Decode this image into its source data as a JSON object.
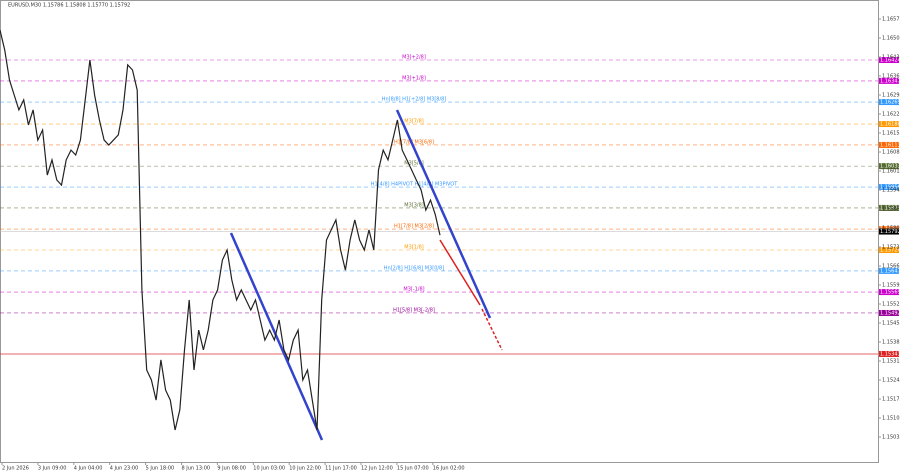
{
  "chart_data": {
    "type": "line",
    "title": "EURUSD,M30  1.15786 1.15808 1.15770 1.15792",
    "ylim": [
      1.14943,
      1.16645
    ],
    "yticks": [
      1.16575,
      1.16505,
      1.16435,
      1.16365,
      1.16295,
      1.16225,
      1.16155,
      1.16085,
      1.16015,
      1.15945,
      1.15875,
      1.15805,
      1.15735,
      1.15665,
      1.15595,
      1.15525,
      1.15455,
      1.15385,
      1.15315,
      1.15245,
      1.15175,
      1.15105,
      1.15035
    ],
    "x_labels": [
      "2 Jun 2026",
      "3 Jun 09:00",
      "4 Jun 04:00",
      "4 Jun 23:00",
      "5 Jun 18:00",
      "8 Jun 13:00",
      "9 Jun 08:00",
      "10 Jun 03:00",
      "10 Jun 22:00",
      "11 Jun 17:00",
      "12 Jun 12:00",
      "15 Jun 07:00",
      "16 Jun 02:00"
    ],
    "series": [
      {
        "name": "EURUSD",
        "color": "#222222",
        "values": [
          1.16534,
          1.16461,
          1.1635,
          1.16295,
          1.1624,
          1.16277,
          1.16185,
          1.1624,
          1.16129,
          1.16166,
          1.16,
          1.16056,
          1.15982,
          1.15963,
          1.16056,
          1.16092,
          1.16074,
          1.16129,
          1.16277,
          1.16424,
          1.16295,
          1.16203,
          1.16129,
          1.16111,
          1.16129,
          1.16148,
          1.1624,
          1.16406,
          1.16387,
          1.16313,
          1.15577,
          1.15282,
          1.15245,
          1.15171,
          1.15319,
          1.15208,
          1.15171,
          1.15061,
          1.15135,
          1.15356,
          1.1554,
          1.15282,
          1.15429,
          1.15356,
          1.15429,
          1.1554,
          1.15577,
          1.15687,
          1.15724,
          1.15614,
          1.1554,
          1.15577,
          1.1554,
          1.15503,
          1.1554,
          1.15466,
          1.15392,
          1.15429,
          1.15392,
          1.15466,
          1.15356,
          1.15319,
          1.15392,
          1.15429,
          1.15245,
          1.15282,
          1.15171,
          1.15061,
          1.1554,
          1.15761,
          1.15798,
          1.15835,
          1.15724,
          1.1565,
          1.15761,
          1.15835,
          1.15761,
          1.15724,
          1.15798,
          1.15724,
          1.16019,
          1.16092,
          1.16056,
          1.16129,
          1.16203,
          1.16092,
          1.16056,
          1.16019,
          1.15982,
          1.15945,
          1.15871,
          1.15908,
          1.15854,
          1.15779
        ]
      }
    ],
    "levels": [
      {
        "label": "M3[+2/8]",
        "price": 1.16424,
        "color": "#cc00cc"
      },
      {
        "label": "M3[+1/8]",
        "price": 1.16347,
        "color": "#cc00cc"
      },
      {
        "label": "Hn[8/8] H1[+2/8] M3[8/8]",
        "price": 1.16269,
        "color": "#3399ff"
      },
      {
        "label": "M3[7/8]",
        "price": 1.16188,
        "color": "#ff9900"
      },
      {
        "label": "H1[7/8] M3[6/8]",
        "price": 1.16111,
        "color": "#ff6600"
      },
      {
        "label": "M3[5/8]",
        "price": 1.16033,
        "color": "#556b2f"
      },
      {
        "label": "H1[4/8] H4PIVOT H1[4/8] M3PIVOT",
        "price": 1.15956,
        "color": "#3399ff"
      },
      {
        "label": "M3[3/8]",
        "price": 1.15879,
        "color": "#556b2f"
      },
      {
        "label": "H1[7/8] M3[2/8]",
        "price": 1.15801,
        "color": "#ff6600"
      },
      {
        "label": "M3[1/8]",
        "price": 1.15724,
        "color": "#ff9900"
      },
      {
        "label": "Hn[2/8] H1[6/8] M3[0/8]",
        "price": 1.15647,
        "color": "#3399ff"
      },
      {
        "label": "M3[-1/8]",
        "price": 1.15569,
        "color": "#cc00cc"
      },
      {
        "label": "H1[5/8] M3[-2/8]",
        "price": 1.15492,
        "color": "#990099"
      }
    ],
    "last_price": 1.15792,
    "red_line": 1.15341
  }
}
